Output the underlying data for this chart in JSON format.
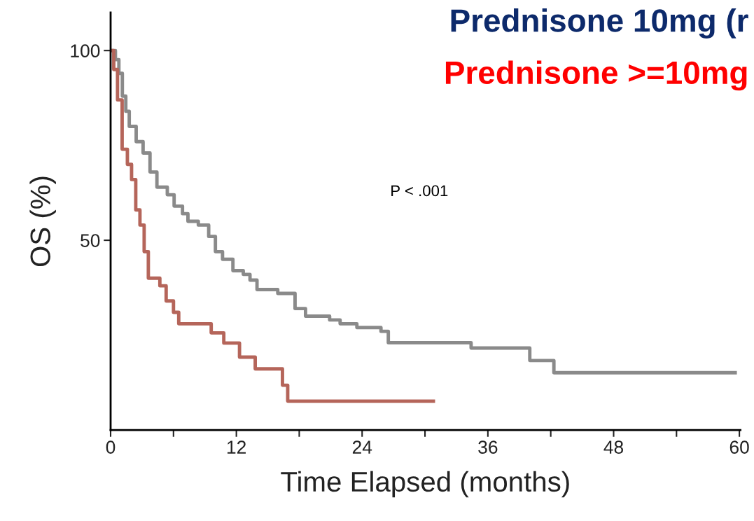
{
  "chart_data": {
    "type": "step",
    "title": "Prednisone 10mg (r",
    "subtitle": "Prednisone >=10mg",
    "xlabel": "Time Elapsed (months)",
    "ylabel": "OS (%)",
    "annotations": [
      "P < .001"
    ],
    "xlim": [
      0,
      60.1
    ],
    "ylim": [
      0,
      110
    ],
    "xticks": [
      0,
      {
        "value": 6,
        "label": null
      },
      12,
      {
        "value": 18,
        "label": null
      },
      24,
      {
        "value": 30,
        "label": null
      },
      36,
      {
        "value": 42,
        "label": null
      },
      48,
      {
        "value": 54,
        "label": null
      },
      60
    ],
    "yticks": [
      50,
      100
    ],
    "grid": false,
    "legend": false,
    "marker": "none",
    "line_style": "solid",
    "series": [
      {
        "color": "#8a8a8a",
        "x": [
          0,
          0.46,
          0.79,
          1.12,
          1.45,
          1.78,
          2.44,
          3.1,
          3.76,
          4.42,
          5.41,
          6.06,
          6.86,
          7.38,
          8.37,
          9.36,
          10.0,
          10.68,
          11.67,
          12.66,
          13.3,
          13.97,
          15.95,
          17.6,
          18.6,
          20.9,
          21.9,
          23.5,
          25.8,
          26.5,
          34.4,
          40.0,
          42.3,
          59.6
        ],
        "values": [
          100,
          97.6,
          94,
          88,
          84,
          80,
          76,
          73,
          68,
          64,
          62,
          59,
          57,
          55,
          54,
          51,
          47,
          45,
          42,
          41,
          39.5,
          37,
          36,
          32,
          30,
          29,
          28,
          27,
          26,
          23,
          21.6,
          18.3,
          15.1,
          15.1
        ]
      },
      {
        "color": "#b5655a",
        "x": [
          0,
          0.3,
          0.66,
          1.1,
          1.6,
          2.0,
          2.4,
          2.8,
          3.2,
          3.6,
          4.7,
          5.3,
          6.0,
          6.5,
          9.6,
          10.8,
          12.3,
          13.8,
          16.4,
          16.9,
          30.8
        ],
        "values": [
          100,
          95,
          87,
          74,
          70,
          66,
          58,
          54,
          47,
          40,
          38,
          34,
          31,
          28,
          25.6,
          22.9,
          19.2,
          16.1,
          11.8,
          7.6,
          7.6
        ]
      }
    ]
  }
}
